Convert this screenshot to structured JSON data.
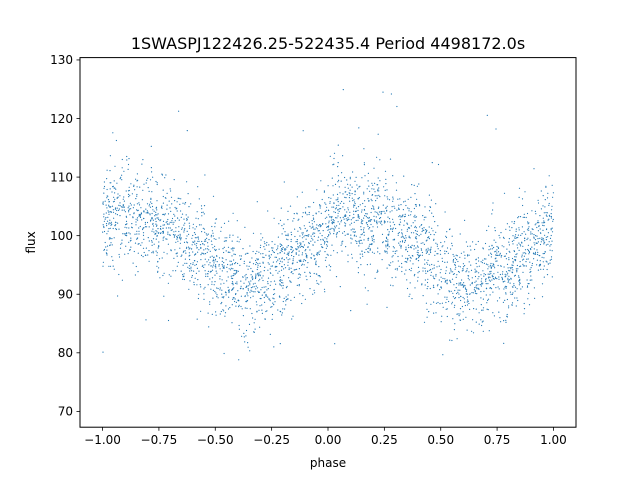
{
  "chart_data": {
    "type": "scatter",
    "title": "1SWASPJ122426.25-522435.4 Period 4498172.0s",
    "xlabel": "phase",
    "ylabel": "flux",
    "xlim": [
      -1.1,
      1.1
    ],
    "ylim": [
      67.3,
      130.4
    ],
    "xticks": [
      "−1.00",
      "−0.75",
      "−0.50",
      "−0.25",
      "0.00",
      "0.25",
      "0.50",
      "0.75",
      "1.00"
    ],
    "xtick_values": [
      -1.0,
      -0.75,
      -0.5,
      -0.25,
      0.0,
      0.25,
      0.5,
      0.75,
      1.0
    ],
    "yticks": [
      "70",
      "80",
      "90",
      "100",
      "110",
      "120",
      "130"
    ],
    "ytick_values": [
      70,
      80,
      90,
      100,
      110,
      120,
      130
    ],
    "grid": false,
    "point_color": "#1f77b4",
    "series": [
      {
        "x_range": [
          -1.0,
          1.0
        ],
        "profile_phase": [
          0.0,
          0.05,
          0.1,
          0.15,
          0.2,
          0.25,
          0.3,
          0.35,
          0.4,
          0.45,
          0.5,
          0.55,
          0.6,
          0.65,
          0.7,
          0.75,
          0.8,
          0.85,
          0.9,
          0.95,
          1.0
        ],
        "profile_flux": [
          103,
          104,
          103,
          102,
          103,
          102,
          101,
          100,
          98,
          97,
          95,
          93,
          92,
          91,
          93,
          94,
          95,
          96,
          97,
          99,
          102
        ],
        "scatter_sd": 4.2
      }
    ]
  }
}
